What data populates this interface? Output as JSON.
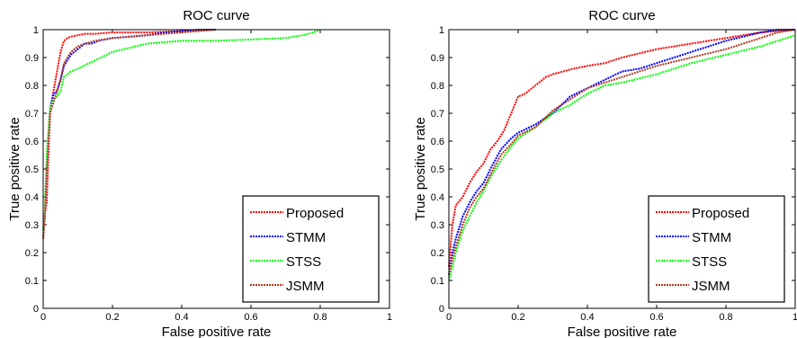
{
  "chart_data": [
    {
      "type": "line",
      "title": "ROC curve",
      "xlabel": "False positive rate",
      "ylabel": "True positive rate",
      "xlim": [
        0,
        1
      ],
      "ylim": [
        0,
        1
      ],
      "xticks": [
        "0",
        "0.2",
        "0.4",
        "0.6",
        "0.8",
        "1"
      ],
      "yticks": [
        "0",
        "0.1",
        "0.2",
        "0.3",
        "0.4",
        "0.5",
        "0.6",
        "0.7",
        "0.8",
        "0.9",
        "1"
      ],
      "legend_position": "bottom-right",
      "series": [
        {
          "name": "Proposed",
          "color": "#ff0000",
          "x": [
            0,
            0.005,
            0.01,
            0.015,
            0.02,
            0.025,
            0.03,
            0.04,
            0.05,
            0.06,
            0.07,
            0.08,
            0.1,
            0.12,
            0.15,
            0.2,
            0.25,
            0.3,
            0.4,
            0.5
          ],
          "y": [
            0.25,
            0.34,
            0.38,
            0.55,
            0.7,
            0.74,
            0.78,
            0.85,
            0.92,
            0.96,
            0.97,
            0.975,
            0.98,
            0.985,
            0.985,
            0.99,
            0.99,
            0.99,
            0.995,
            1.0
          ]
        },
        {
          "name": "STMM",
          "color": "#0000ff",
          "x": [
            0,
            0.005,
            0.01,
            0.02,
            0.03,
            0.04,
            0.05,
            0.06,
            0.08,
            0.1,
            0.12,
            0.14,
            0.16,
            0.2,
            0.25,
            0.3,
            0.35,
            0.4,
            0.45,
            0.5
          ],
          "y": [
            0.28,
            0.33,
            0.5,
            0.72,
            0.77,
            0.78,
            0.82,
            0.87,
            0.91,
            0.93,
            0.95,
            0.95,
            0.96,
            0.97,
            0.975,
            0.98,
            0.99,
            0.995,
            1.0,
            1.0
          ]
        },
        {
          "name": "STSS",
          "color": "#00ff00",
          "x": [
            0,
            0.005,
            0.01,
            0.02,
            0.03,
            0.04,
            0.05,
            0.06,
            0.08,
            0.1,
            0.15,
            0.2,
            0.3,
            0.4,
            0.5,
            0.6,
            0.7,
            0.75,
            0.78,
            0.8
          ],
          "y": [
            0.28,
            0.35,
            0.55,
            0.72,
            0.75,
            0.76,
            0.78,
            0.83,
            0.85,
            0.86,
            0.89,
            0.92,
            0.95,
            0.96,
            0.96,
            0.965,
            0.97,
            0.98,
            0.99,
            1.0
          ]
        },
        {
          "name": "JSMM",
          "color": "#b03a22",
          "x": [
            0,
            0.005,
            0.01,
            0.02,
            0.03,
            0.04,
            0.05,
            0.06,
            0.08,
            0.1,
            0.12,
            0.15,
            0.2,
            0.25,
            0.3,
            0.35,
            0.4,
            0.45,
            0.5
          ],
          "y": [
            0.25,
            0.33,
            0.48,
            0.7,
            0.74,
            0.78,
            0.82,
            0.88,
            0.92,
            0.94,
            0.95,
            0.96,
            0.97,
            0.975,
            0.98,
            0.985,
            0.99,
            0.995,
            1.0
          ]
        }
      ]
    },
    {
      "type": "line",
      "title": "ROC curve",
      "xlabel": "False positive rate",
      "ylabel": "True positive rate",
      "xlim": [
        0,
        1
      ],
      "ylim": [
        0,
        1
      ],
      "xticks": [
        "0",
        "0.2",
        "0.4",
        "0.6",
        "0.8",
        "1"
      ],
      "yticks": [
        "0",
        "0.1",
        "0.2",
        "0.3",
        "0.4",
        "0.5",
        "0.6",
        "0.7",
        "0.8",
        "0.9",
        "1"
      ],
      "legend_position": "bottom-right",
      "series": [
        {
          "name": "Proposed",
          "color": "#ff0000",
          "x": [
            0,
            0.01,
            0.02,
            0.04,
            0.06,
            0.08,
            0.1,
            0.12,
            0.14,
            0.16,
            0.18,
            0.2,
            0.22,
            0.25,
            0.28,
            0.3,
            0.33,
            0.36,
            0.4,
            0.45,
            0.5,
            0.6,
            0.7,
            0.8,
            0.9,
            1.0
          ],
          "y": [
            0.15,
            0.3,
            0.37,
            0.4,
            0.45,
            0.49,
            0.52,
            0.57,
            0.6,
            0.64,
            0.7,
            0.76,
            0.77,
            0.8,
            0.83,
            0.84,
            0.85,
            0.86,
            0.87,
            0.88,
            0.9,
            0.93,
            0.95,
            0.97,
            0.99,
            1.0
          ]
        },
        {
          "name": "STMM",
          "color": "#0000ff",
          "x": [
            0,
            0.01,
            0.02,
            0.04,
            0.06,
            0.08,
            0.1,
            0.12,
            0.15,
            0.18,
            0.2,
            0.25,
            0.3,
            0.35,
            0.4,
            0.45,
            0.5,
            0.55,
            0.6,
            0.7,
            0.8,
            0.9,
            0.95,
            1.0
          ],
          "y": [
            0.12,
            0.2,
            0.25,
            0.33,
            0.38,
            0.42,
            0.45,
            0.5,
            0.57,
            0.61,
            0.63,
            0.66,
            0.7,
            0.76,
            0.79,
            0.82,
            0.85,
            0.86,
            0.88,
            0.92,
            0.96,
            0.99,
            1.0,
            1.0
          ]
        },
        {
          "name": "STSS",
          "color": "#00ff00",
          "x": [
            0,
            0.01,
            0.02,
            0.04,
            0.06,
            0.08,
            0.1,
            0.12,
            0.15,
            0.18,
            0.2,
            0.25,
            0.3,
            0.35,
            0.4,
            0.45,
            0.5,
            0.6,
            0.7,
            0.8,
            0.9,
            1.0
          ],
          "y": [
            0.1,
            0.15,
            0.2,
            0.28,
            0.33,
            0.38,
            0.42,
            0.47,
            0.53,
            0.58,
            0.61,
            0.65,
            0.7,
            0.73,
            0.77,
            0.8,
            0.81,
            0.84,
            0.88,
            0.91,
            0.94,
            0.98
          ]
        },
        {
          "name": "JSMM",
          "color": "#b03a22",
          "x": [
            0,
            0.01,
            0.02,
            0.04,
            0.06,
            0.08,
            0.1,
            0.12,
            0.15,
            0.18,
            0.2,
            0.25,
            0.3,
            0.35,
            0.4,
            0.45,
            0.5,
            0.55,
            0.6,
            0.7,
            0.8,
            0.9,
            0.95,
            1.0
          ],
          "y": [
            0.12,
            0.18,
            0.22,
            0.3,
            0.36,
            0.4,
            0.43,
            0.48,
            0.55,
            0.59,
            0.62,
            0.65,
            0.71,
            0.75,
            0.79,
            0.81,
            0.83,
            0.85,
            0.87,
            0.9,
            0.93,
            0.97,
            0.99,
            1.0
          ]
        }
      ]
    }
  ]
}
